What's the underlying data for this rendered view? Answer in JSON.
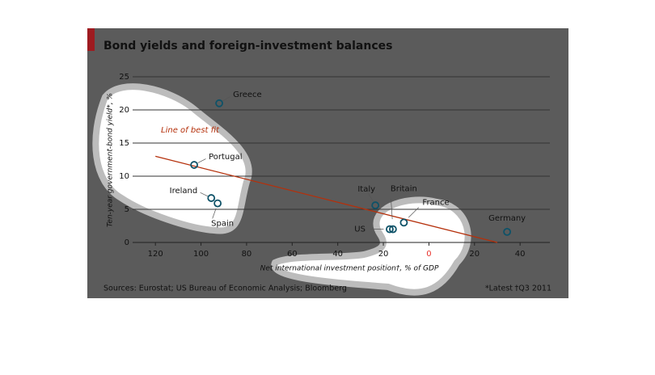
{
  "chart_data": {
    "type": "scatter",
    "title": "Bond yields and foreign-investment balances",
    "y_label": "Ten-year government-bond yield*, %",
    "x_label": "Net international investment position†, % of GDP",
    "source": "Sources: Eurostat; US Bureau of Economic Analysis; Bloomberg",
    "notes": [
      "*Latest",
      "†Q3 2011"
    ],
    "xlim": [
      -130,
      52
    ],
    "ylim": [
      0,
      25
    ],
    "xticks": [
      {
        "value": -120,
        "label": "120"
      },
      {
        "value": -100,
        "label": "100"
      },
      {
        "value": -80,
        "label": "80"
      },
      {
        "value": -60,
        "label": "60"
      },
      {
        "value": -40,
        "label": "40"
      },
      {
        "value": -20,
        "label": "20"
      },
      0,
      20,
      40
    ],
    "yticks": [
      0,
      5,
      10,
      15,
      20,
      25
    ],
    "zero_tick_color": "#e8322c",
    "grid": true,
    "color": "#0e5268",
    "points": [
      {
        "label": "Greece",
        "x": -92,
        "y": 21.0
      },
      {
        "label": "Portugal",
        "x": -103,
        "y": 11.7
      },
      {
        "label": "Ireland",
        "x": -95.5,
        "y": 6.7
      },
      {
        "label": "Spain",
        "x": -92.7,
        "y": 5.9
      },
      {
        "label": "Italy",
        "x": -23.5,
        "y": 5.6
      },
      {
        "label": "US",
        "x": -17.2,
        "y": 2.0
      },
      {
        "label": "Britain",
        "x": -15.8,
        "y": 2.0
      },
      {
        "label": "France",
        "x": -11,
        "y": 3.0
      },
      {
        "label": "Germany",
        "x": 34.3,
        "y": 1.6
      }
    ],
    "fit_line": {
      "label": "Line of best fit",
      "x": [
        -120,
        30
      ],
      "y": [
        13,
        0
      ],
      "color": "#b5300b"
    }
  }
}
